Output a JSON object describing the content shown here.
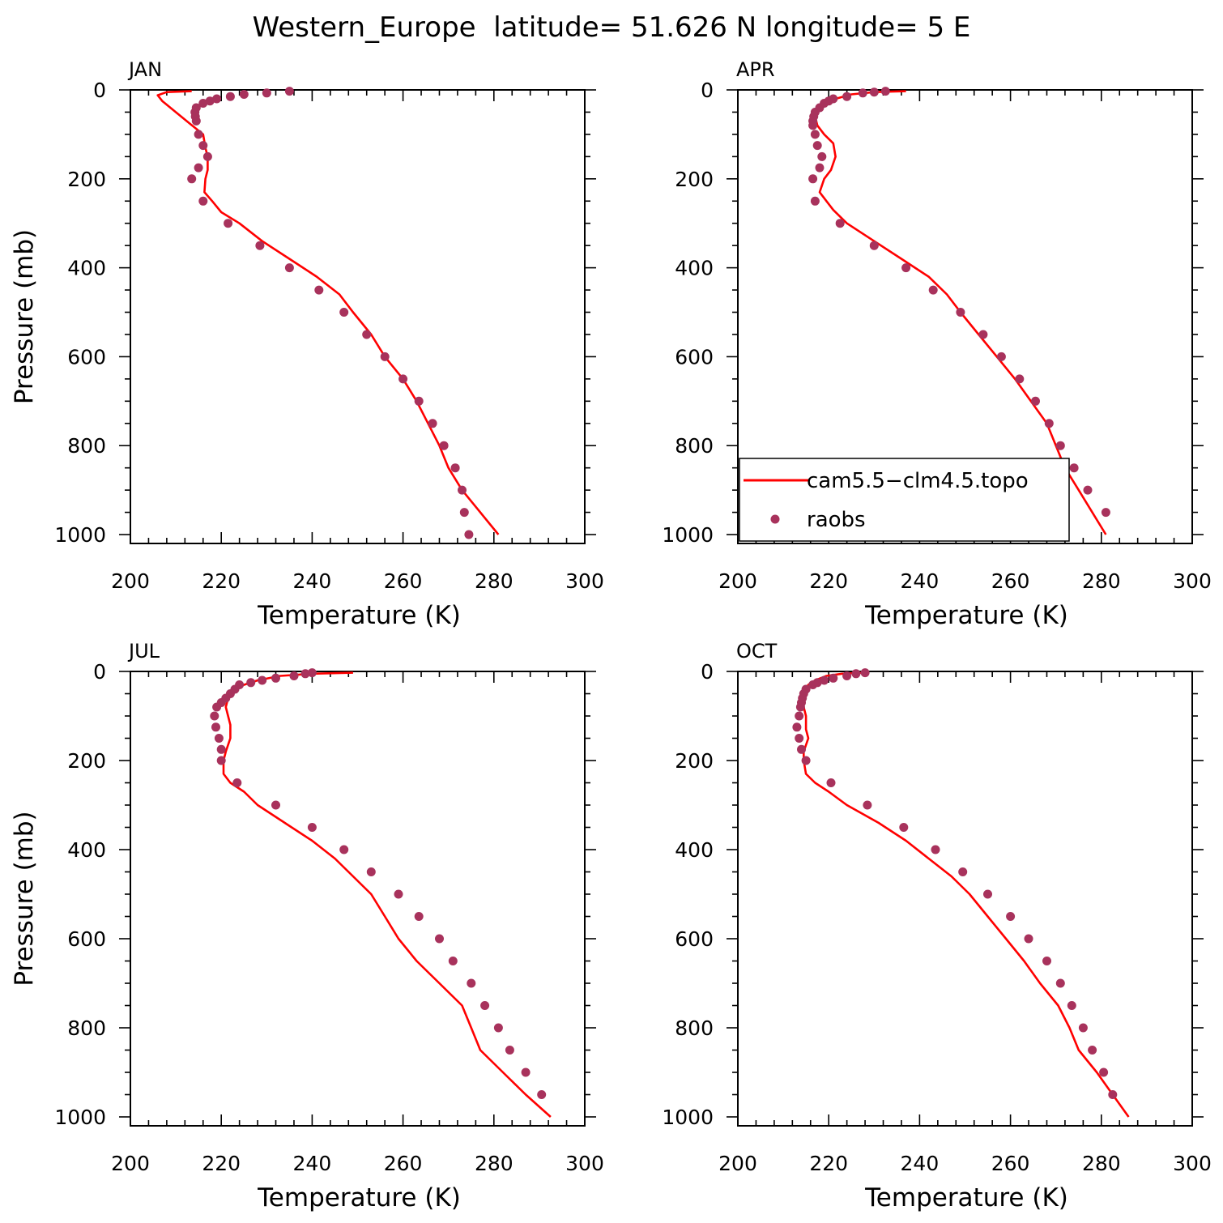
{
  "page_title": "Western_Europe  latitude= 51.626 N longitude= 5 E",
  "colors": {
    "model": "#ff0000",
    "obs": "#a8325c",
    "axis": "#000000"
  },
  "legend": {
    "model_label": "cam5.5−clm4.5.topo",
    "obs_label": "raobs",
    "placement": "inside APR panel, bottom-left"
  },
  "chart_data": [
    {
      "type": "line",
      "panel": "JAN",
      "xlabel": "Temperature (K)",
      "ylabel": "Pressure (mb)",
      "xlim": [
        200,
        300
      ],
      "ylim": [
        1020,
        0
      ],
      "xticks": [
        "200",
        "220",
        "240",
        "260",
        "280",
        "300"
      ],
      "yticks": [
        "0",
        "200",
        "400",
        "600",
        "800",
        "1000"
      ],
      "series": [
        {
          "name": "cam5.5−clm4.5.topo",
          "points": [
            [
              213.5,
              3
            ],
            [
              208,
              5
            ],
            [
              206,
              12
            ],
            [
              207,
              25
            ],
            [
              210,
              50
            ],
            [
              213,
              75
            ],
            [
              216,
              100
            ],
            [
              216.5,
              130
            ],
            [
              217,
              150
            ],
            [
              217,
              180
            ],
            [
              216.5,
              200
            ],
            [
              216.3,
              230
            ],
            [
              218,
              250
            ],
            [
              220,
              275
            ],
            [
              224,
              300
            ],
            [
              229,
              340
            ],
            [
              235,
              380
            ],
            [
              241,
              420
            ],
            [
              246,
              460
            ],
            [
              249,
              500
            ],
            [
              253,
              550
            ],
            [
              256,
              600
            ],
            [
              260,
              650
            ],
            [
              263,
              700
            ],
            [
              265.5,
              750
            ],
            [
              268,
              800
            ],
            [
              270,
              850
            ],
            [
              273,
              900
            ],
            [
              277,
              950
            ],
            [
              281,
              1000
            ]
          ]
        },
        {
          "name": "raobs",
          "points": [
            [
              235,
              3
            ],
            [
              230,
              7
            ],
            [
              225,
              10
            ],
            [
              222,
              15
            ],
            [
              219,
              20
            ],
            [
              217.5,
              25
            ],
            [
              216,
              30
            ],
            [
              214.5,
              40
            ],
            [
              214.2,
              50
            ],
            [
              214.3,
              60
            ],
            [
              214.5,
              70
            ],
            [
              215,
              100
            ],
            [
              216,
              125
            ],
            [
              217,
              150
            ],
            [
              215,
              175
            ],
            [
              213.5,
              200
            ],
            [
              216,
              250
            ],
            [
              221.5,
              300
            ],
            [
              228.5,
              350
            ],
            [
              235,
              400
            ],
            [
              241.5,
              450
            ],
            [
              247,
              500
            ],
            [
              252,
              550
            ],
            [
              256,
              600
            ],
            [
              260,
              650
            ],
            [
              263.5,
              700
            ],
            [
              266.5,
              750
            ],
            [
              269,
              800
            ],
            [
              271.5,
              850
            ],
            [
              273,
              900
            ],
            [
              273.5,
              950
            ],
            [
              274.5,
              1000
            ]
          ]
        }
      ]
    },
    {
      "type": "line",
      "panel": "APR",
      "xlabel": "Temperature (K)",
      "ylabel": "",
      "xlim": [
        200,
        300
      ],
      "ylim": [
        1020,
        0
      ],
      "xticks": [
        "200",
        "220",
        "240",
        "260",
        "280",
        "300"
      ],
      "yticks": [
        "0",
        "200",
        "400",
        "600",
        "800",
        "1000"
      ],
      "series": [
        {
          "name": "cam5.5−clm4.5.topo",
          "points": [
            [
              237,
              3
            ],
            [
              230,
              5
            ],
            [
              225,
              10
            ],
            [
              221.5,
              20
            ],
            [
              219,
              30
            ],
            [
              217.5,
              40
            ],
            [
              217,
              60
            ],
            [
              217.5,
              80
            ],
            [
              219,
              100
            ],
            [
              221,
              120
            ],
            [
              221.5,
              150
            ],
            [
              220.5,
              180
            ],
            [
              219,
              200
            ],
            [
              218,
              230
            ],
            [
              219.5,
              250
            ],
            [
              221,
              270
            ],
            [
              224,
              300
            ],
            [
              230,
              340
            ],
            [
              236,
              380
            ],
            [
              242,
              420
            ],
            [
              246,
              460
            ],
            [
              249,
              500
            ],
            [
              253,
              550
            ],
            [
              257,
              600
            ],
            [
              261,
              650
            ],
            [
              264.5,
              700
            ],
            [
              268,
              750
            ],
            [
              270,
              800
            ],
            [
              272,
              850
            ],
            [
              275,
              900
            ],
            [
              278,
              950
            ],
            [
              281,
              1000
            ]
          ]
        },
        {
          "name": "raobs",
          "points": [
            [
              232.5,
              3
            ],
            [
              230,
              5
            ],
            [
              227.5,
              7
            ],
            [
              224,
              15
            ],
            [
              221,
              20
            ],
            [
              220,
              25
            ],
            [
              219,
              30
            ],
            [
              218,
              40
            ],
            [
              217,
              50
            ],
            [
              216.7,
              60
            ],
            [
              216.5,
              70
            ],
            [
              216.5,
              80
            ],
            [
              217,
              100
            ],
            [
              217.5,
              125
            ],
            [
              218.5,
              150
            ],
            [
              218,
              175
            ],
            [
              216.5,
              200
            ],
            [
              217,
              250
            ],
            [
              222.5,
              300
            ],
            [
              230,
              350
            ],
            [
              237,
              400
            ],
            [
              243,
              450
            ],
            [
              249,
              500
            ],
            [
              254,
              550
            ],
            [
              258,
              600
            ],
            [
              262,
              650
            ],
            [
              265.5,
              700
            ],
            [
              268.5,
              750
            ],
            [
              271,
              800
            ],
            [
              274,
              850
            ],
            [
              277,
              900
            ],
            [
              281,
              950
            ]
          ]
        }
      ]
    },
    {
      "type": "line",
      "panel": "JUL",
      "xlabel": "Temperature (K)",
      "ylabel": "Pressure (mb)",
      "xlim": [
        200,
        300
      ],
      "ylim": [
        1020,
        0
      ],
      "xticks": [
        "200",
        "220",
        "240",
        "260",
        "280",
        "300"
      ],
      "yticks": [
        "0",
        "200",
        "400",
        "600",
        "800",
        "1000"
      ],
      "series": [
        {
          "name": "cam5.5−clm4.5.topo",
          "points": [
            [
              249,
              3
            ],
            [
              240,
              5
            ],
            [
              233,
              10
            ],
            [
              228,
              20
            ],
            [
              225,
              30
            ],
            [
              223,
              40
            ],
            [
              221.5,
              60
            ],
            [
              221,
              80
            ],
            [
              221.5,
              100
            ],
            [
              222,
              120
            ],
            [
              222,
              150
            ],
            [
              221,
              180
            ],
            [
              220.5,
              200
            ],
            [
              220.5,
              230
            ],
            [
              222,
              250
            ],
            [
              225,
              270
            ],
            [
              228,
              300
            ],
            [
              234,
              340
            ],
            [
              240,
              380
            ],
            [
              245,
              420
            ],
            [
              249,
              460
            ],
            [
              253,
              500
            ],
            [
              256,
              550
            ],
            [
              259,
              600
            ],
            [
              263,
              650
            ],
            [
              268,
              700
            ],
            [
              273,
              750
            ],
            [
              275,
              800
            ],
            [
              277,
              850
            ],
            [
              282,
              900
            ],
            [
              287,
              950
            ],
            [
              292.5,
              1000
            ]
          ]
        },
        {
          "name": "raobs",
          "points": [
            [
              240,
              3
            ],
            [
              238.5,
              5
            ],
            [
              236,
              10
            ],
            [
              232,
              15
            ],
            [
              229,
              20
            ],
            [
              226.5,
              25
            ],
            [
              224,
              30
            ],
            [
              223,
              40
            ],
            [
              222,
              50
            ],
            [
              221,
              60
            ],
            [
              220,
              70
            ],
            [
              219,
              80
            ],
            [
              218.5,
              100
            ],
            [
              218.8,
              125
            ],
            [
              219.5,
              150
            ],
            [
              220,
              175
            ],
            [
              220,
              200
            ],
            [
              223.5,
              250
            ],
            [
              232,
              300
            ],
            [
              240,
              350
            ],
            [
              247,
              400
            ],
            [
              253,
              450
            ],
            [
              259,
              500
            ],
            [
              263.5,
              550
            ],
            [
              268,
              600
            ],
            [
              271,
              650
            ],
            [
              275,
              700
            ],
            [
              278,
              750
            ],
            [
              281,
              800
            ],
            [
              283.5,
              850
            ],
            [
              287,
              900
            ],
            [
              290.5,
              950
            ]
          ]
        }
      ]
    },
    {
      "type": "line",
      "panel": "OCT",
      "xlabel": "Temperature (K)",
      "ylabel": "",
      "xlim": [
        200,
        300
      ],
      "ylim": [
        1020,
        0
      ],
      "xticks": [
        "200",
        "220",
        "240",
        "260",
        "280",
        "300"
      ],
      "yticks": [
        "0",
        "200",
        "400",
        "600",
        "800",
        "1000"
      ],
      "series": [
        {
          "name": "cam5.5−clm4.5.topo",
          "points": [
            [
              227.5,
              3
            ],
            [
              223,
              5
            ],
            [
              219.5,
              10
            ],
            [
              217,
              20
            ],
            [
              215.5,
              30
            ],
            [
              215,
              40
            ],
            [
              214.5,
              60
            ],
            [
              214.5,
              80
            ],
            [
              215,
              100
            ],
            [
              215,
              130
            ],
            [
              215.5,
              150
            ],
            [
              214.5,
              180
            ],
            [
              214.5,
              200
            ],
            [
              215,
              230
            ],
            [
              217,
              250
            ],
            [
              220,
              270
            ],
            [
              224,
              300
            ],
            [
              231,
              340
            ],
            [
              237,
              380
            ],
            [
              242,
              420
            ],
            [
              247,
              460
            ],
            [
              251,
              500
            ],
            [
              255,
              550
            ],
            [
              259,
              600
            ],
            [
              263,
              650
            ],
            [
              266.5,
              700
            ],
            [
              270.5,
              750
            ],
            [
              273,
              800
            ],
            [
              275,
              850
            ],
            [
              279,
              900
            ],
            [
              282.5,
              950
            ],
            [
              286,
              1000
            ]
          ]
        },
        {
          "name": "raobs",
          "points": [
            [
              228,
              3
            ],
            [
              226,
              5
            ],
            [
              224,
              10
            ],
            [
              221,
              15
            ],
            [
              219,
              20
            ],
            [
              217.5,
              25
            ],
            [
              216.5,
              30
            ],
            [
              215,
              40
            ],
            [
              214.5,
              50
            ],
            [
              214.2,
              60
            ],
            [
              214,
              70
            ],
            [
              213.8,
              80
            ],
            [
              213.5,
              100
            ],
            [
              213,
              125
            ],
            [
              213.5,
              150
            ],
            [
              214,
              175
            ],
            [
              215,
              200
            ],
            [
              220.5,
              250
            ],
            [
              228.5,
              300
            ],
            [
              236.5,
              350
            ],
            [
              243.5,
              400
            ],
            [
              249.5,
              450
            ],
            [
              255,
              500
            ],
            [
              260,
              550
            ],
            [
              264,
              600
            ],
            [
              268,
              650
            ],
            [
              271,
              700
            ],
            [
              273.5,
              750
            ],
            [
              276,
              800
            ],
            [
              278,
              850
            ],
            [
              280.5,
              900
            ],
            [
              282.5,
              950
            ]
          ]
        }
      ]
    }
  ]
}
